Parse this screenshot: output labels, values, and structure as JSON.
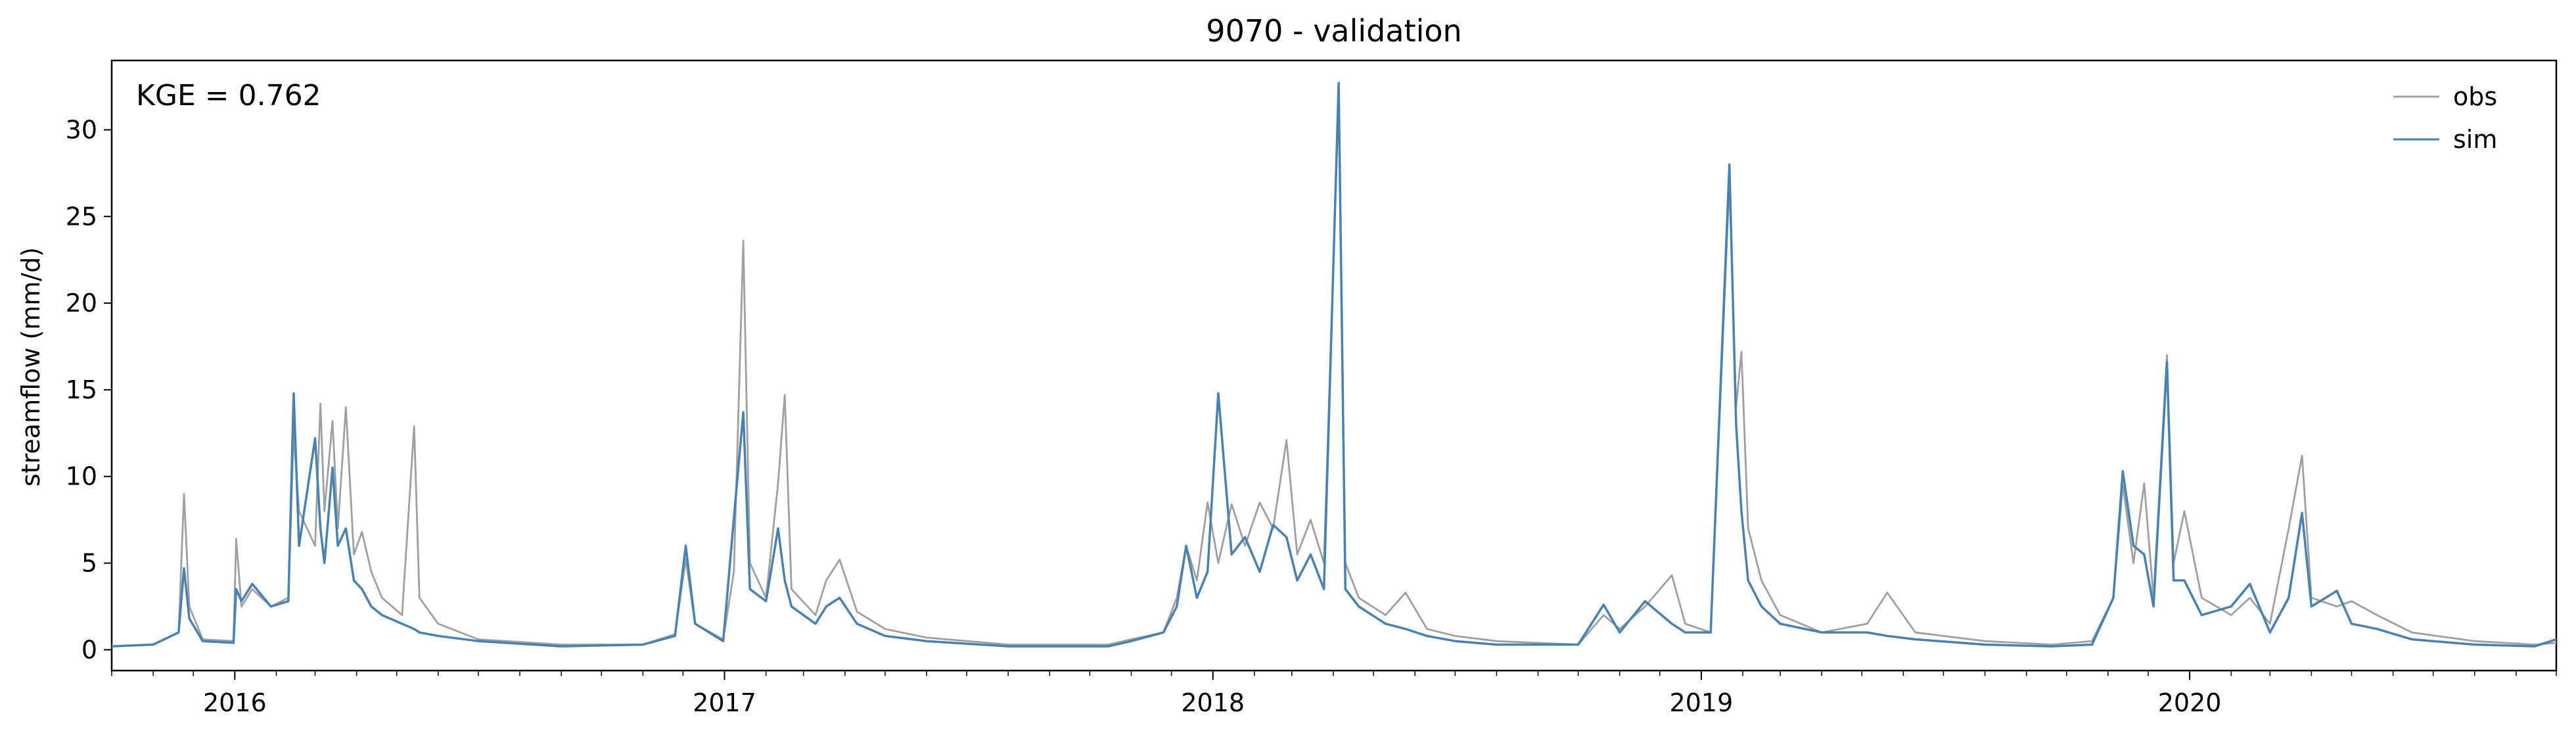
{
  "chart_data": {
    "type": "line",
    "title": "9070 - validation",
    "xlabel": "",
    "ylabel": "streamflow (mm/d)",
    "annotation": "KGE = 0.762",
    "legend_position": "top-right",
    "grid": false,
    "xlim": [
      "2015-10-01",
      "2020-10-01"
    ],
    "ylim": [
      -1.2,
      34
    ],
    "x_ticks": [
      "2016",
      "2017",
      "2018",
      "2019",
      "2020"
    ],
    "y_ticks": [
      "0",
      "5",
      "10",
      "15",
      "20",
      "25",
      "30"
    ],
    "y_tick_values": [
      0,
      5,
      10,
      15,
      20,
      25,
      30
    ],
    "series": [
      {
        "name": "obs",
        "color": "#a0a0a0",
        "points": [
          [
            "2015-10-01",
            0.2
          ],
          [
            "2015-11-01",
            0.3
          ],
          [
            "2015-11-20",
            1.0
          ],
          [
            "2015-11-24",
            9.0
          ],
          [
            "2015-11-28",
            2.5
          ],
          [
            "2015-12-08",
            0.6
          ],
          [
            "2015-12-31",
            0.5
          ],
          [
            "2016-01-02",
            6.4
          ],
          [
            "2016-01-06",
            2.5
          ],
          [
            "2016-01-14",
            3.5
          ],
          [
            "2016-01-28",
            2.5
          ],
          [
            "2016-02-10",
            3.0
          ],
          [
            "2016-02-14",
            12.5
          ],
          [
            "2016-02-18",
            8.0
          ],
          [
            "2016-03-01",
            6.0
          ],
          [
            "2016-03-05",
            14.2
          ],
          [
            "2016-03-08",
            8.0
          ],
          [
            "2016-03-14",
            13.2
          ],
          [
            "2016-03-18",
            7.0
          ],
          [
            "2016-03-24",
            14.0
          ],
          [
            "2016-03-30",
            5.5
          ],
          [
            "2016-04-05",
            6.8
          ],
          [
            "2016-04-12",
            4.5
          ],
          [
            "2016-04-20",
            3.0
          ],
          [
            "2016-05-05",
            2.0
          ],
          [
            "2016-05-14",
            12.9
          ],
          [
            "2016-05-18",
            3.0
          ],
          [
            "2016-06-01",
            1.5
          ],
          [
            "2016-07-01",
            0.6
          ],
          [
            "2016-09-01",
            0.3
          ],
          [
            "2016-11-01",
            0.3
          ],
          [
            "2016-11-25",
            0.9
          ],
          [
            "2016-12-03",
            5.2
          ],
          [
            "2016-12-10",
            1.5
          ],
          [
            "2016-12-31",
            0.6
          ],
          [
            "2017-01-08",
            4.5
          ],
          [
            "2017-01-15",
            23.6
          ],
          [
            "2017-01-20",
            5.0
          ],
          [
            "2017-02-01",
            3.0
          ],
          [
            "2017-02-10",
            9.6
          ],
          [
            "2017-02-15",
            14.7
          ],
          [
            "2017-02-20",
            3.5
          ],
          [
            "2017-03-10",
            2.0
          ],
          [
            "2017-03-18",
            4.0
          ],
          [
            "2017-03-28",
            5.2
          ],
          [
            "2017-04-10",
            2.2
          ],
          [
            "2017-05-01",
            1.2
          ],
          [
            "2017-06-01",
            0.7
          ],
          [
            "2017-08-01",
            0.3
          ],
          [
            "2017-10-15",
            0.3
          ],
          [
            "2017-11-01",
            0.6
          ],
          [
            "2017-11-25",
            1.0
          ],
          [
            "2017-12-05",
            3.0
          ],
          [
            "2017-12-12",
            6.0
          ],
          [
            "2017-12-20",
            4.0
          ],
          [
            "2017-12-28",
            8.5
          ],
          [
            "2018-01-05",
            5.0
          ],
          [
            "2018-01-15",
            8.4
          ],
          [
            "2018-01-25",
            6.0
          ],
          [
            "2018-02-05",
            8.5
          ],
          [
            "2018-02-15",
            7.0
          ],
          [
            "2018-02-25",
            12.1
          ],
          [
            "2018-03-05",
            5.5
          ],
          [
            "2018-03-15",
            7.5
          ],
          [
            "2018-03-25",
            5.0
          ],
          [
            "2018-04-05",
            32.0
          ],
          [
            "2018-04-10",
            5.0
          ],
          [
            "2018-04-20",
            3.0
          ],
          [
            "2018-05-10",
            2.0
          ],
          [
            "2018-05-25",
            3.3
          ],
          [
            "2018-06-10",
            1.2
          ],
          [
            "2018-07-01",
            0.8
          ],
          [
            "2018-08-01",
            0.5
          ],
          [
            "2018-10-01",
            0.3
          ],
          [
            "2018-10-20",
            2.0
          ],
          [
            "2018-11-01",
            1.2
          ],
          [
            "2018-11-20",
            2.5
          ],
          [
            "2018-12-10",
            4.3
          ],
          [
            "2018-12-20",
            1.5
          ],
          [
            "2019-01-08",
            1.0
          ],
          [
            "2019-01-22",
            27.0
          ],
          [
            "2019-01-27",
            14.0
          ],
          [
            "2019-01-31",
            17.2
          ],
          [
            "2019-02-05",
            7.0
          ],
          [
            "2019-02-15",
            4.0
          ],
          [
            "2019-03-01",
            2.0
          ],
          [
            "2019-04-01",
            1.0
          ],
          [
            "2019-05-05",
            1.5
          ],
          [
            "2019-05-20",
            3.3
          ],
          [
            "2019-06-10",
            1.0
          ],
          [
            "2019-08-01",
            0.5
          ],
          [
            "2019-09-20",
            0.3
          ],
          [
            "2019-10-20",
            0.5
          ],
          [
            "2019-11-05",
            3.0
          ],
          [
            "2019-11-12",
            9.5
          ],
          [
            "2019-11-20",
            5.0
          ],
          [
            "2019-11-28",
            9.6
          ],
          [
            "2019-12-05",
            3.0
          ],
          [
            "2019-12-15",
            17.0
          ],
          [
            "2019-12-20",
            5.0
          ],
          [
            "2019-12-28",
            8.0
          ],
          [
            "2020-01-10",
            3.0
          ],
          [
            "2020-02-01",
            2.0
          ],
          [
            "2020-02-15",
            3.0
          ],
          [
            "2020-03-01",
            1.5
          ],
          [
            "2020-03-15",
            7.0
          ],
          [
            "2020-03-25",
            11.2
          ],
          [
            "2020-04-01",
            3.0
          ],
          [
            "2020-04-20",
            2.5
          ],
          [
            "2020-05-01",
            2.8
          ],
          [
            "2020-05-20",
            2.0
          ],
          [
            "2020-06-15",
            1.0
          ],
          [
            "2020-08-01",
            0.5
          ],
          [
            "2020-09-15",
            0.3
          ],
          [
            "2020-10-01",
            0.4
          ]
        ]
      },
      {
        "name": "sim",
        "color": "#4682b4",
        "points": [
          [
            "2015-10-01",
            0.2
          ],
          [
            "2015-11-01",
            0.3
          ],
          [
            "2015-11-20",
            1.0
          ],
          [
            "2015-11-24",
            4.7
          ],
          [
            "2015-11-28",
            1.8
          ],
          [
            "2015-12-08",
            0.5
          ],
          [
            "2015-12-31",
            0.4
          ],
          [
            "2016-01-02",
            3.5
          ],
          [
            "2016-01-06",
            2.8
          ],
          [
            "2016-01-14",
            3.8
          ],
          [
            "2016-01-28",
            2.5
          ],
          [
            "2016-02-10",
            2.8
          ],
          [
            "2016-02-14",
            14.8
          ],
          [
            "2016-02-18",
            6.0
          ],
          [
            "2016-03-01",
            12.2
          ],
          [
            "2016-03-05",
            7.0
          ],
          [
            "2016-03-08",
            5.0
          ],
          [
            "2016-03-14",
            10.5
          ],
          [
            "2016-03-18",
            6.0
          ],
          [
            "2016-03-24",
            7.0
          ],
          [
            "2016-03-30",
            4.0
          ],
          [
            "2016-04-05",
            3.5
          ],
          [
            "2016-04-12",
            2.5
          ],
          [
            "2016-04-20",
            2.0
          ],
          [
            "2016-05-05",
            1.5
          ],
          [
            "2016-05-14",
            1.2
          ],
          [
            "2016-05-18",
            1.0
          ],
          [
            "2016-06-01",
            0.8
          ],
          [
            "2016-07-01",
            0.5
          ],
          [
            "2016-09-01",
            0.2
          ],
          [
            "2016-11-01",
            0.3
          ],
          [
            "2016-11-25",
            0.8
          ],
          [
            "2016-12-03",
            6.0
          ],
          [
            "2016-12-10",
            1.5
          ],
          [
            "2016-12-31",
            0.5
          ],
          [
            "2017-01-08",
            7.6
          ],
          [
            "2017-01-15",
            13.7
          ],
          [
            "2017-01-20",
            3.5
          ],
          [
            "2017-02-01",
            2.8
          ],
          [
            "2017-02-10",
            7.0
          ],
          [
            "2017-02-15",
            4.0
          ],
          [
            "2017-02-20",
            2.5
          ],
          [
            "2017-03-10",
            1.5
          ],
          [
            "2017-03-18",
            2.5
          ],
          [
            "2017-03-28",
            3.0
          ],
          [
            "2017-04-10",
            1.5
          ],
          [
            "2017-05-01",
            0.8
          ],
          [
            "2017-06-01",
            0.5
          ],
          [
            "2017-08-01",
            0.2
          ],
          [
            "2017-10-15",
            0.2
          ],
          [
            "2017-11-01",
            0.5
          ],
          [
            "2017-11-25",
            1.0
          ],
          [
            "2017-12-05",
            2.5
          ],
          [
            "2017-12-12",
            6.0
          ],
          [
            "2017-12-20",
            3.0
          ],
          [
            "2017-12-28",
            4.5
          ],
          [
            "2018-01-05",
            14.8
          ],
          [
            "2018-01-15",
            5.5
          ],
          [
            "2018-01-25",
            6.5
          ],
          [
            "2018-02-05",
            4.5
          ],
          [
            "2018-02-15",
            7.2
          ],
          [
            "2018-02-25",
            6.5
          ],
          [
            "2018-03-05",
            4.0
          ],
          [
            "2018-03-15",
            5.5
          ],
          [
            "2018-03-25",
            3.5
          ],
          [
            "2018-04-05",
            32.7
          ],
          [
            "2018-04-10",
            3.5
          ],
          [
            "2018-04-20",
            2.5
          ],
          [
            "2018-05-10",
            1.5
          ],
          [
            "2018-05-25",
            1.2
          ],
          [
            "2018-06-10",
            0.8
          ],
          [
            "2018-07-01",
            0.5
          ],
          [
            "2018-08-01",
            0.3
          ],
          [
            "2018-10-01",
            0.3
          ],
          [
            "2018-10-20",
            2.6
          ],
          [
            "2018-11-01",
            1.0
          ],
          [
            "2018-11-20",
            2.8
          ],
          [
            "2018-12-10",
            1.5
          ],
          [
            "2018-12-20",
            1.0
          ],
          [
            "2019-01-08",
            1.0
          ],
          [
            "2019-01-22",
            28.0
          ],
          [
            "2019-01-27",
            13.0
          ],
          [
            "2019-01-31",
            8.0
          ],
          [
            "2019-02-05",
            4.0
          ],
          [
            "2019-02-15",
            2.5
          ],
          [
            "2019-03-01",
            1.5
          ],
          [
            "2019-04-01",
            1.0
          ],
          [
            "2019-05-05",
            1.0
          ],
          [
            "2019-05-20",
            0.8
          ],
          [
            "2019-06-10",
            0.6
          ],
          [
            "2019-08-01",
            0.3
          ],
          [
            "2019-09-20",
            0.2
          ],
          [
            "2019-10-20",
            0.3
          ],
          [
            "2019-11-05",
            3.0
          ],
          [
            "2019-11-12",
            10.3
          ],
          [
            "2019-11-20",
            6.0
          ],
          [
            "2019-11-28",
            5.5
          ],
          [
            "2019-12-05",
            2.5
          ],
          [
            "2019-12-15",
            16.6
          ],
          [
            "2019-12-20",
            4.0
          ],
          [
            "2019-12-28",
            4.0
          ],
          [
            "2020-01-10",
            2.0
          ],
          [
            "2020-02-01",
            2.5
          ],
          [
            "2020-02-15",
            3.8
          ],
          [
            "2020-03-01",
            1.0
          ],
          [
            "2020-03-15",
            3.0
          ],
          [
            "2020-03-25",
            7.9
          ],
          [
            "2020-04-01",
            2.5
          ],
          [
            "2020-04-20",
            3.4
          ],
          [
            "2020-05-01",
            1.5
          ],
          [
            "2020-05-20",
            1.2
          ],
          [
            "2020-06-15",
            0.6
          ],
          [
            "2020-08-01",
            0.3
          ],
          [
            "2020-09-15",
            0.2
          ],
          [
            "2020-10-01",
            0.6
          ]
        ]
      }
    ]
  }
}
